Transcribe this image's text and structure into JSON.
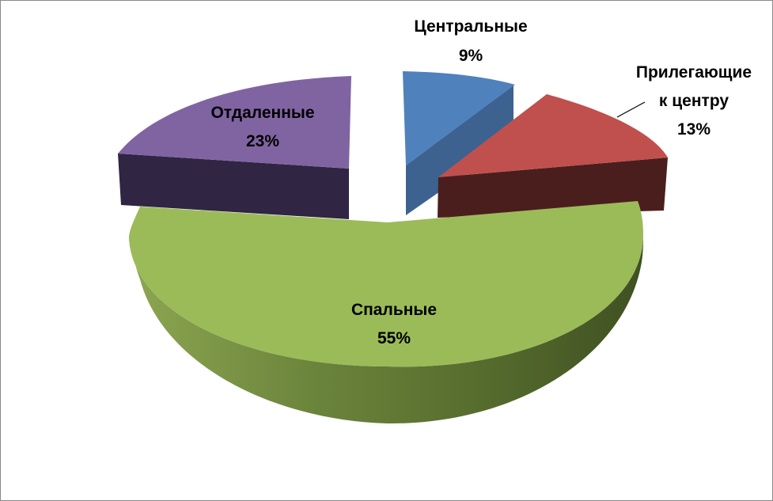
{
  "chart_data": {
    "type": "pie",
    "style": "3d-exploded",
    "title": "",
    "legend": "none",
    "categories": [
      "Центральные",
      "Прилегающие к центру",
      "Спальные",
      "Отдаленные"
    ],
    "values": [
      9,
      13,
      55,
      23
    ],
    "unit": "%",
    "slices": [
      {
        "name": "Центральные",
        "value": 9,
        "label_lines": [
          "Центральные"
        ],
        "pct_label": "9%",
        "color": "#4F81BD"
      },
      {
        "name": "Прилегающие к центру",
        "value": 13,
        "label_lines": [
          "Прилегающие",
          "к центру"
        ],
        "pct_label": "13%",
        "color": "#C0504D"
      },
      {
        "name": "Спальные",
        "value": 55,
        "label_lines": [
          "Спальные"
        ],
        "pct_label": "55%",
        "color": "#9BBB59"
      },
      {
        "name": "Отдаленные",
        "value": 23,
        "label_lines": [
          "Отдаленные"
        ],
        "pct_label": "23%",
        "color": "#8064A2"
      }
    ]
  }
}
